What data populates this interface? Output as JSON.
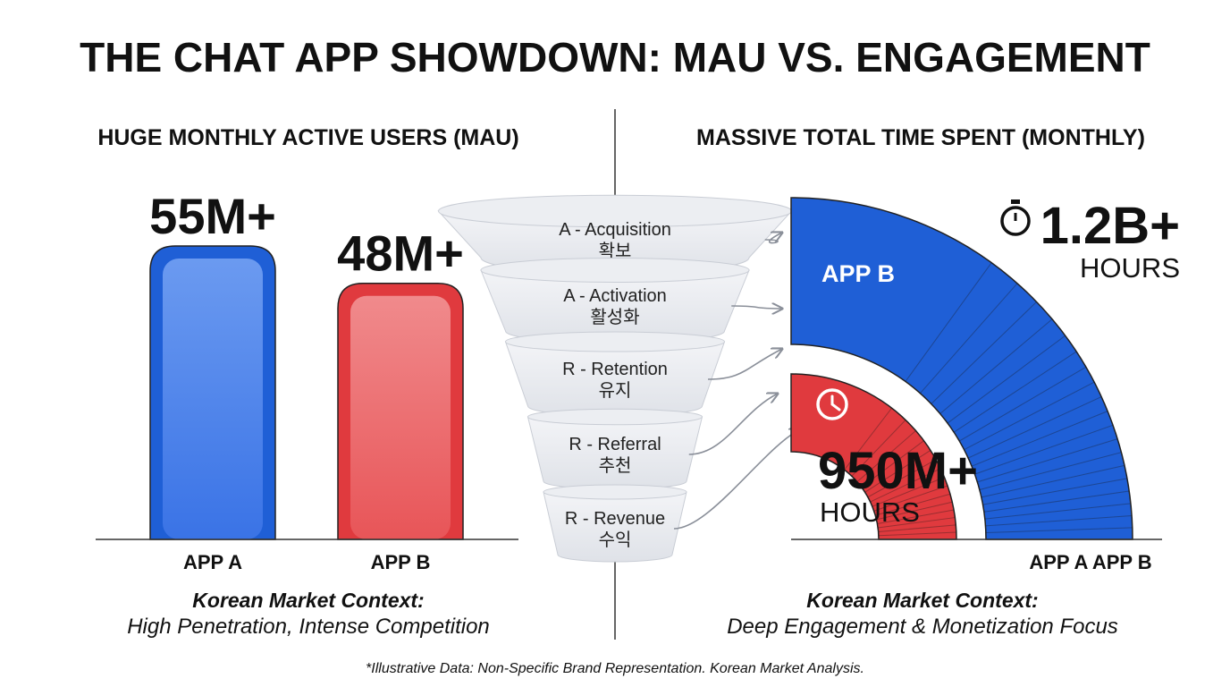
{
  "title": "THE CHAT APP SHOWDOWN: MAU VS. ENGAGEMENT",
  "colors": {
    "blue": "#1f5fd6",
    "red": "#e03a3e",
    "gray": "#333333"
  },
  "chart_data": [
    {
      "type": "bar",
      "title": "HUGE MONTHLY ACTIVE USERS (MAU)",
      "categories": [
        "APP A",
        "APP B"
      ],
      "values": [
        55,
        48
      ],
      "unit": "M",
      "value_labels": [
        "55M+",
        "48M+"
      ],
      "colors": [
        "#1f5fd6",
        "#e03a3e"
      ],
      "ylim": [
        0,
        60
      ],
      "context_heading": "Korean Market Context:",
      "context_text": "High Penetration, Intense Competition"
    },
    {
      "type": "funnel",
      "stages": [
        {
          "label": "A - Acquisition",
          "korean": "확보"
        },
        {
          "label": "A - Activation",
          "korean": "활성화"
        },
        {
          "label": "R - Retention",
          "korean": "유지"
        },
        {
          "label": "R - Referral",
          "korean": "추천"
        },
        {
          "label": "R - Revenue",
          "korean": "수익"
        }
      ]
    },
    {
      "type": "radial-bar",
      "title": "MASSIVE TOTAL TIME SPENT (MONTHLY)",
      "series": [
        {
          "name": "APP B",
          "value": 1.2,
          "unit": "B hours",
          "label": "1.2B+",
          "sub": "HOURS",
          "color": "#1f5fd6"
        },
        {
          "name": "APP A",
          "value": 0.95,
          "unit": "B hours",
          "label": "950M+",
          "sub": "HOURS",
          "color": "#e03a3e"
        }
      ],
      "series_label": "APP B",
      "axis_labels": "APP A APP B",
      "context_heading": "Korean Market Context:",
      "context_text": "Deep Engagement & Monetization Focus"
    }
  ],
  "footnote": "*Illustrative Data: Non-Specific Brand Representation. Korean Market Analysis."
}
